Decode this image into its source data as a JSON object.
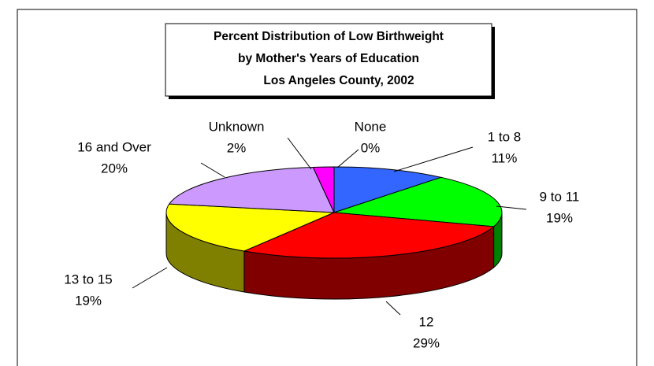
{
  "chart_data": {
    "type": "pie3d",
    "title": [
      "Percent Distribution of Low Birthweight",
      "by Mother's Years of Education",
      "Los Angeles County, 2002"
    ],
    "categories": [
      "None",
      "1 to 8",
      "9 to 11",
      "12",
      "13 to 15",
      "16 and Over",
      "Unknown"
    ],
    "values": [
      0,
      11,
      19,
      29,
      19,
      20,
      2
    ],
    "value_labels": [
      "0%",
      "11%",
      "19%",
      "29%",
      "19%",
      "20%",
      "2%"
    ],
    "colors": [
      "#000080",
      "#3366ff",
      "#00ff00",
      "#ff0000",
      "#ffff00",
      "#cc99ff",
      "#ff00ff"
    ]
  }
}
